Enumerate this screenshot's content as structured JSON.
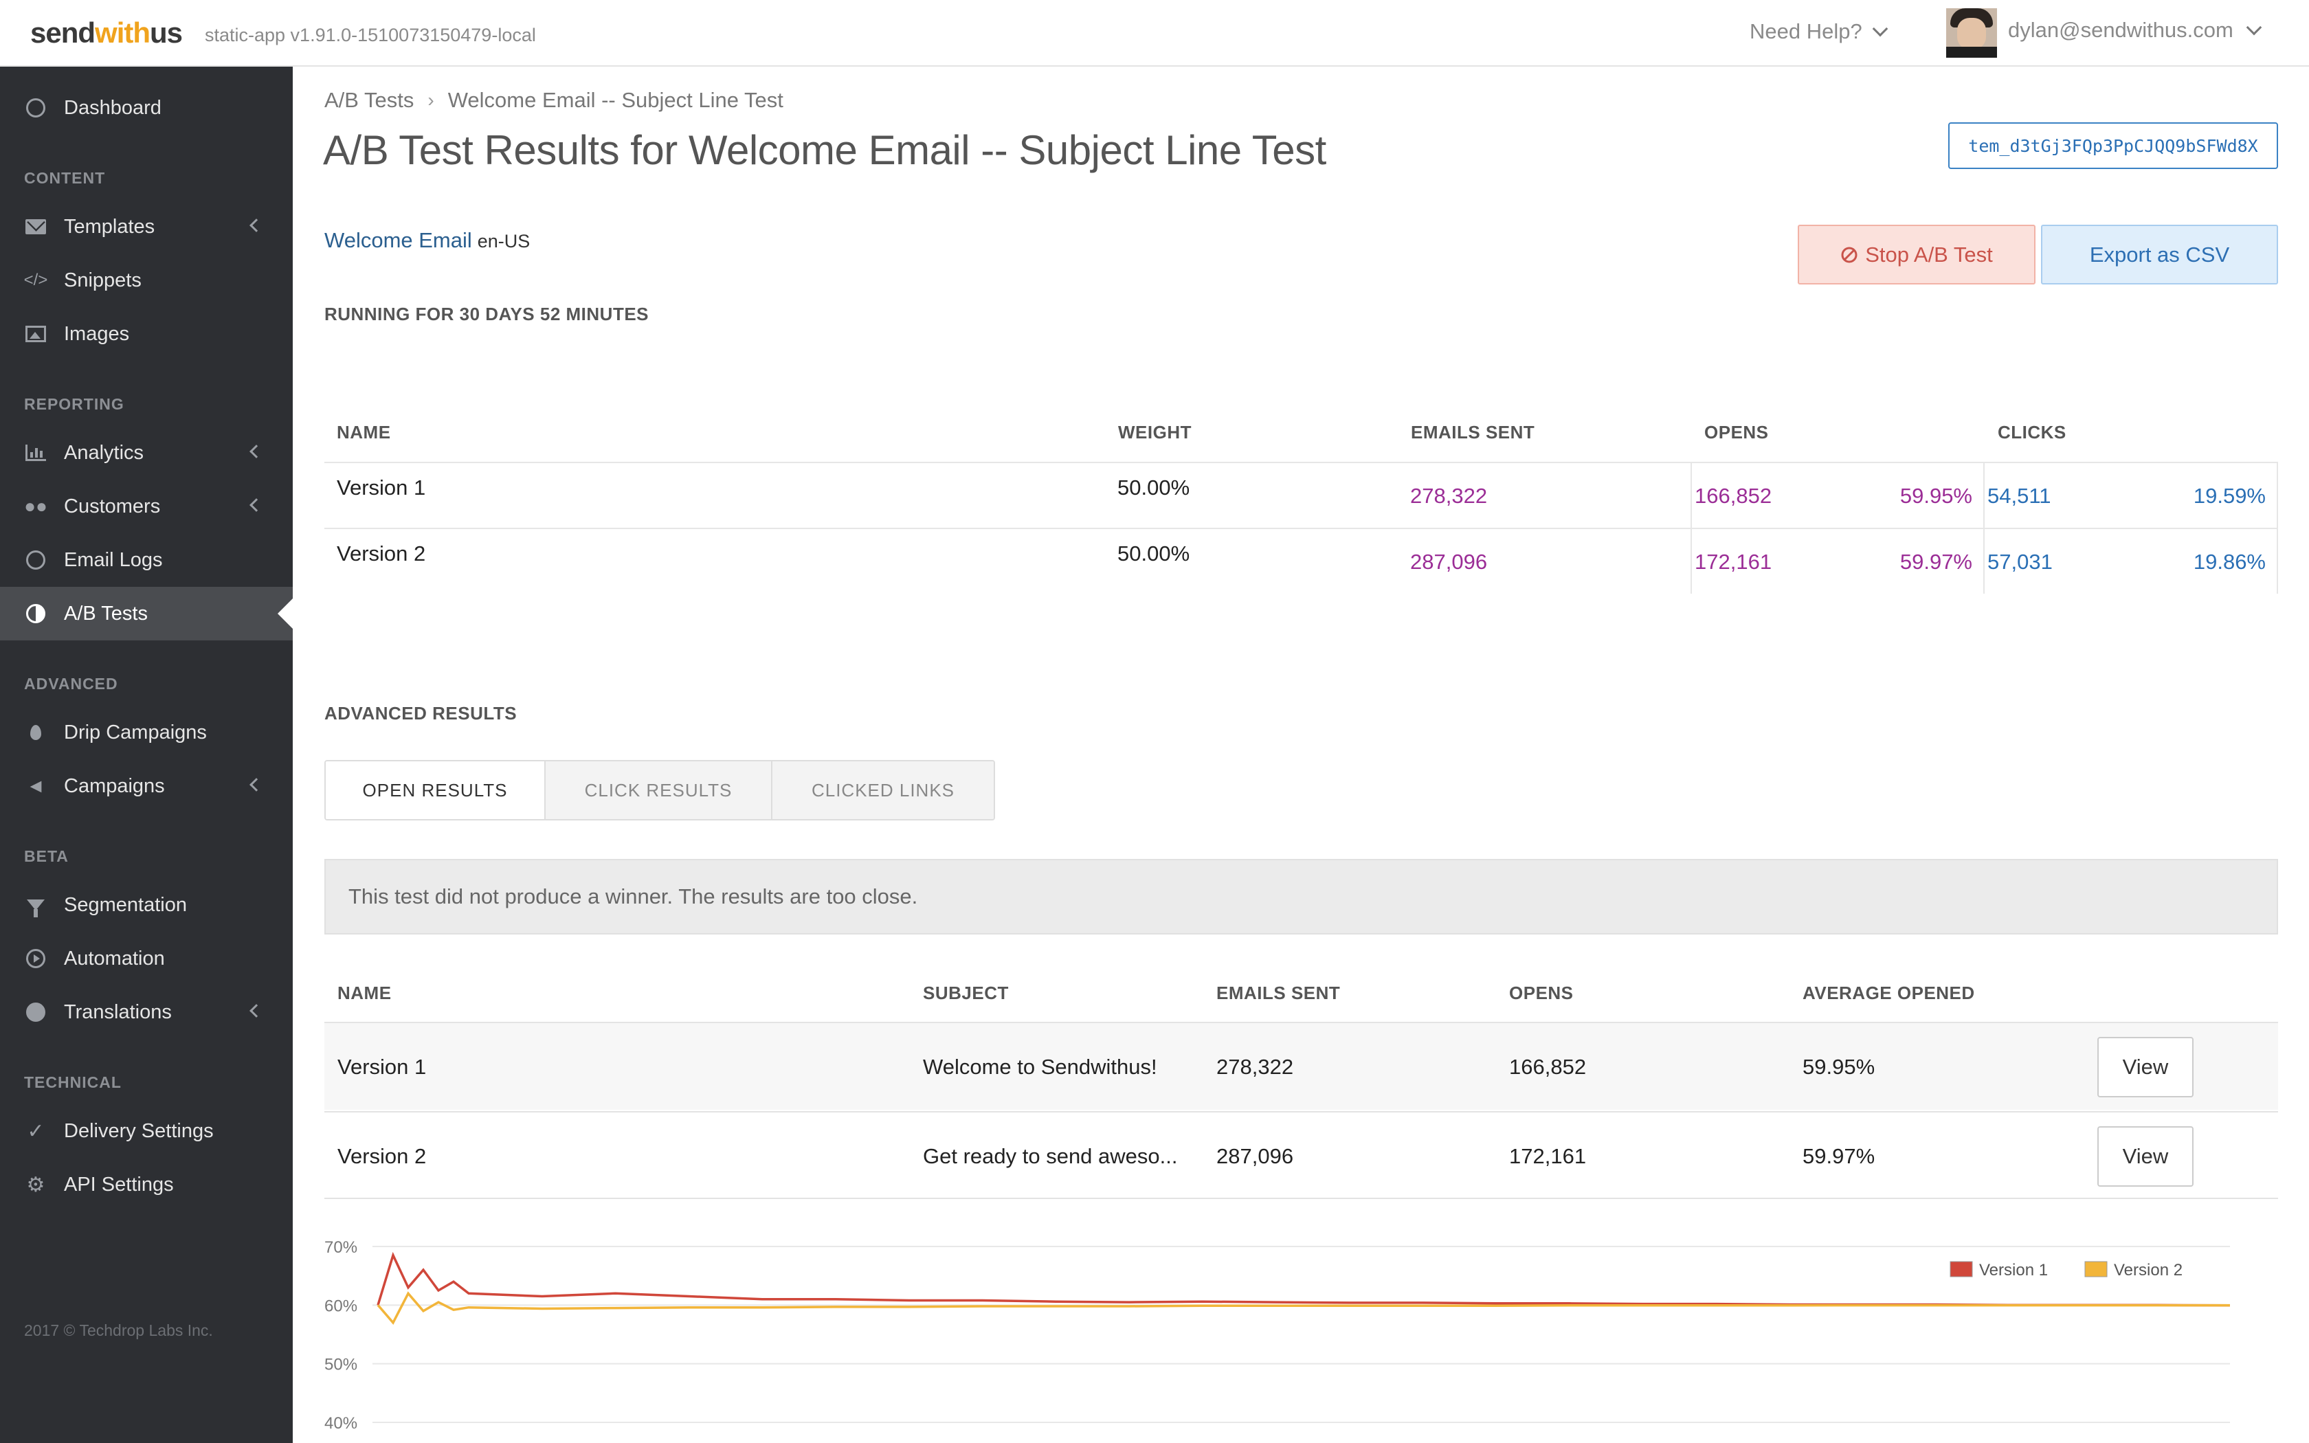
{
  "header": {
    "logo_send": "send",
    "logo_with": "with",
    "logo_us": "us",
    "version": "static-app v1.91.0-1510073150479-local",
    "help": "Need Help?",
    "user_email": "dylan@sendwithus.com"
  },
  "sidebar": {
    "dashboard": "Dashboard",
    "section_content": "CONTENT",
    "templates": "Templates",
    "snippets": "Snippets",
    "images": "Images",
    "section_reporting": "REPORTING",
    "analytics": "Analytics",
    "customers": "Customers",
    "email_logs": "Email Logs",
    "ab_tests": "A/B Tests",
    "section_advanced": "ADVANCED",
    "drip_campaigns": "Drip Campaigns",
    "campaigns": "Campaigns",
    "section_beta": "BETA",
    "segmentation": "Segmentation",
    "automation": "Automation",
    "translations": "Translations",
    "section_technical": "TECHNICAL",
    "delivery_settings": "Delivery Settings",
    "api_settings": "API Settings",
    "copyright": "2017 © Techdrop Labs Inc."
  },
  "breadcrumb": {
    "parent": "A/B Tests",
    "current": "Welcome Email -- Subject Line Test"
  },
  "page": {
    "title": "A/B Test Results for Welcome Email -- Subject Line Test",
    "template_id": "tem_d3tGj3FQp3PpCJQQ9bSFWd8X",
    "template_name": "Welcome Email",
    "locale": "en-US",
    "stop_button": "Stop A/B Test",
    "export_button": "Export as CSV",
    "running": "RUNNING FOR 30 DAYS 52 MINUTES"
  },
  "summary": {
    "headers": [
      "NAME",
      "WEIGHT",
      "EMAILS SENT",
      "OPENS",
      "CLICKS"
    ],
    "rows": [
      {
        "name": "Version 1",
        "weight": "50.00%",
        "sent": "278,322",
        "opens": "166,852",
        "open_pct": "59.95%",
        "clicks": "54,511",
        "click_pct": "19.59%"
      },
      {
        "name": "Version 2",
        "weight": "50.00%",
        "sent": "287,096",
        "opens": "172,161",
        "open_pct": "59.97%",
        "clicks": "57,031",
        "click_pct": "19.86%"
      }
    ]
  },
  "advanced": {
    "title": "ADVANCED RESULTS",
    "tabs": [
      "OPEN RESULTS",
      "CLICK RESULTS",
      "CLICKED LINKS"
    ],
    "notice": "This test did not produce a winner. The results are too close.",
    "headers": [
      "NAME",
      "SUBJECT",
      "EMAILS SENT",
      "OPENS",
      "AVERAGE OPENED"
    ],
    "rows": [
      {
        "name": "Version 1",
        "subject": "Welcome to Sendwithus!",
        "sent": "278,322",
        "opens": "166,852",
        "avg": "59.95%",
        "action": "View"
      },
      {
        "name": "Version 2",
        "subject": "Get ready to send aweso...",
        "sent": "287,096",
        "opens": "172,161",
        "avg": "59.97%",
        "action": "View"
      }
    ]
  },
  "colors": {
    "version1": "#d0473a",
    "version2": "#f2b53a"
  },
  "chart_data": {
    "type": "line",
    "title": "",
    "xlabel": "",
    "ylabel": "",
    "ylim": [
      40,
      70
    ],
    "yticks": [
      "70%",
      "60%",
      "50%",
      "40%"
    ],
    "legend_position": "top-right",
    "grid": true,
    "series": [
      {
        "name": "Version 1",
        "values": [
          60,
          68.5,
          63,
          66,
          62.5,
          64,
          62,
          61.5,
          62,
          61.5,
          61,
          61,
          60.8,
          60.8,
          60.6,
          60.5,
          60.6,
          60.5,
          60.4,
          60.4,
          60.3,
          60.3,
          60.2,
          60.2,
          60.1,
          60.1,
          60.1,
          60,
          60,
          60,
          59.95
        ]
      },
      {
        "name": "Version 2",
        "values": [
          60,
          57,
          62,
          59,
          60.5,
          59.2,
          59.6,
          59.4,
          59.5,
          59.6,
          59.6,
          59.7,
          59.7,
          59.8,
          59.8,
          59.8,
          59.9,
          59.9,
          59.9,
          59.9,
          59.9,
          59.95,
          59.95,
          59.95,
          59.95,
          59.97,
          59.97,
          59.97,
          59.97,
          59.97,
          59.97
        ]
      }
    ]
  }
}
